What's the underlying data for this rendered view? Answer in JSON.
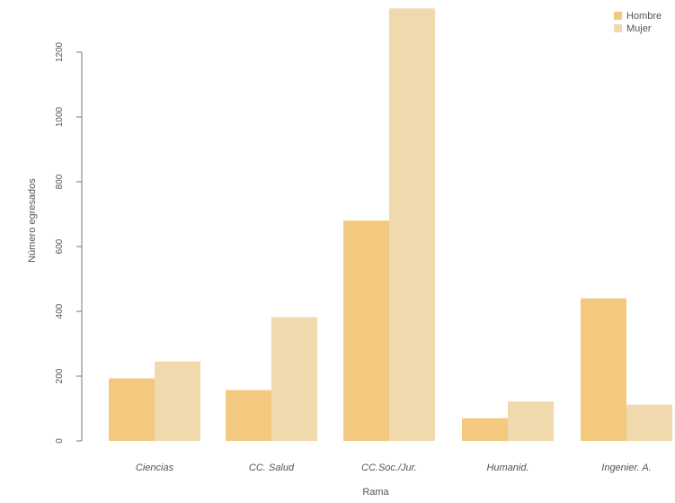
{
  "chart_data": {
    "type": "bar",
    "title": "",
    "xlabel": "Rama",
    "ylabel": "Número egresados",
    "categories": [
      "Ciencias",
      "CC. Salud",
      "CC.Soc./Jur.",
      "Humanid.",
      "Ingenier. A."
    ],
    "series": [
      {
        "name": "Hombre",
        "values": [
          193,
          157,
          680,
          70,
          440
        ],
        "color": "#f3c97f"
      },
      {
        "name": "Mujer",
        "values": [
          245,
          382,
          1335,
          122,
          112
        ],
        "color": "#f0d9ad"
      }
    ],
    "yticks": [
      0,
      200,
      400,
      600,
      800,
      1000,
      1200
    ],
    "ylim": [
      0,
      1335
    ],
    "grid": false,
    "legend_position": "top-right"
  }
}
